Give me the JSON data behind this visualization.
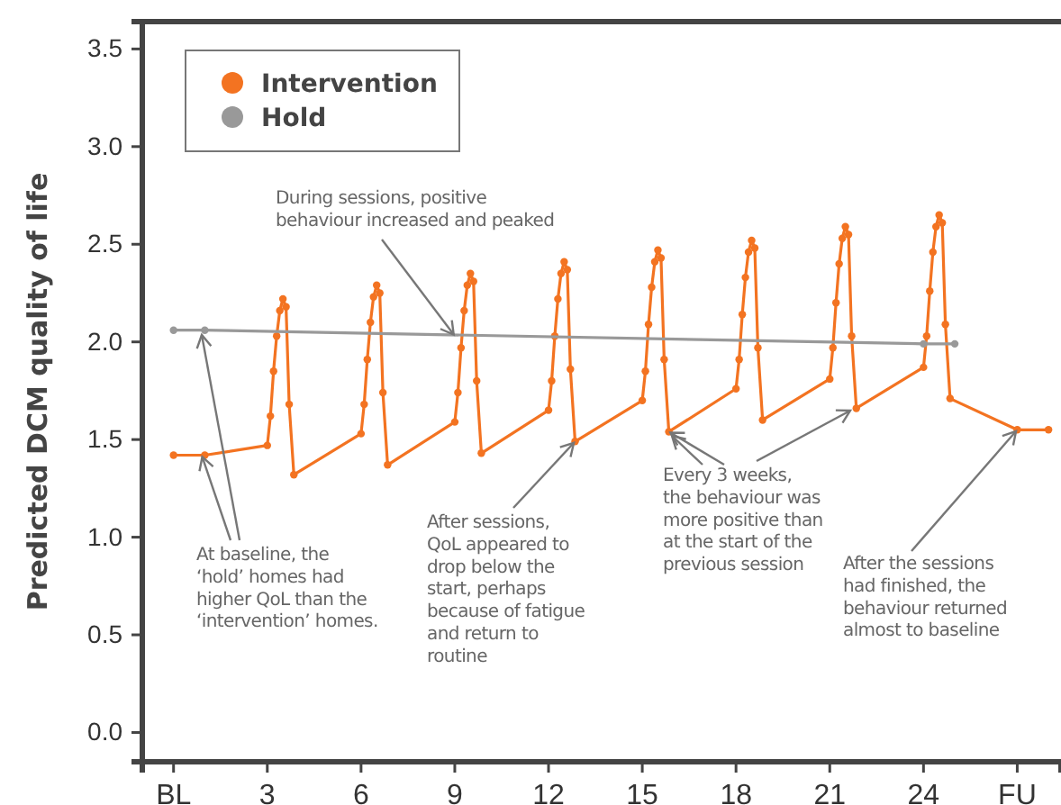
{
  "chart_data": {
    "type": "line",
    "ylabel": "Predicted DCM quality of life",
    "xlim": [
      -1,
      28.4
    ],
    "ylim": [
      -0.15,
      3.64
    ],
    "xticks": [
      {
        "value": 0,
        "label": "BL"
      },
      3,
      6,
      9,
      12,
      15,
      18,
      21,
      24,
      {
        "value": 27,
        "label": "FU"
      }
    ],
    "yticks": [
      {
        "value": 0,
        "label": "0.0"
      },
      {
        "value": 0.5,
        "label": "0.5"
      },
      {
        "value": 1,
        "label": "1.0"
      },
      {
        "value": 1.5,
        "label": "1.5"
      },
      {
        "value": 2,
        "label": "2.0"
      },
      {
        "value": 2.5,
        "label": "2.5"
      },
      {
        "value": 3,
        "label": "3.0"
      },
      {
        "value": 3.5,
        "label": "3.5"
      }
    ],
    "grid": false,
    "legend": "top left",
    "marker": "circle",
    "line_style": "solid",
    "series": [
      {
        "name": "Intervention",
        "color": "#f37321",
        "x": [
          0,
          1,
          3,
          3.1,
          3.2,
          3.3,
          3.4,
          3.5,
          3.6,
          3.7,
          3.85,
          6,
          6.1,
          6.2,
          6.3,
          6.4,
          6.5,
          6.6,
          6.7,
          6.85,
          9,
          9.1,
          9.2,
          9.3,
          9.4,
          9.5,
          9.6,
          9.7,
          9.85,
          12,
          12.1,
          12.2,
          12.3,
          12.4,
          12.5,
          12.6,
          12.7,
          12.85,
          15,
          15.1,
          15.2,
          15.3,
          15.4,
          15.5,
          15.6,
          15.7,
          15.85,
          18,
          18.1,
          18.2,
          18.3,
          18.4,
          18.5,
          18.6,
          18.7,
          18.85,
          21,
          21.1,
          21.2,
          21.3,
          21.4,
          21.5,
          21.6,
          21.7,
          21.85,
          24,
          24.1,
          24.2,
          24.3,
          24.4,
          24.5,
          24.6,
          24.7,
          24.85,
          27,
          28
        ],
        "values": [
          1.42,
          1.42,
          1.47,
          1.62,
          1.85,
          2.03,
          2.16,
          2.22,
          2.18,
          1.68,
          1.32,
          1.53,
          1.68,
          1.91,
          2.1,
          2.23,
          2.29,
          2.25,
          1.74,
          1.37,
          1.59,
          1.74,
          1.97,
          2.16,
          2.29,
          2.35,
          2.31,
          1.8,
          1.43,
          1.65,
          1.8,
          2.03,
          2.22,
          2.35,
          2.41,
          2.37,
          1.86,
          1.49,
          1.7,
          1.85,
          2.09,
          2.28,
          2.41,
          2.47,
          2.43,
          1.91,
          1.54,
          1.76,
          1.91,
          2.14,
          2.33,
          2.46,
          2.52,
          2.48,
          1.97,
          1.6,
          1.81,
          1.97,
          2.2,
          2.4,
          2.53,
          2.59,
          2.55,
          2.03,
          1.66,
          1.87,
          2.03,
          2.26,
          2.46,
          2.59,
          2.65,
          2.61,
          2.09,
          1.71,
          1.55,
          1.55
        ]
      },
      {
        "name": "Hold",
        "color": "#999999",
        "x": [
          0,
          1,
          24,
          25
        ],
        "values": [
          2.06,
          2.06,
          1.99,
          1.99
        ]
      }
    ],
    "annotations": [
      {
        "text": "During sessions, positive\nbehaviour increased and peaked",
        "x": 9,
        "y": 2.03
      },
      {
        "text": "At baseline, the\n‘hold’ homes had\nhigher QoL than the\n‘intervention’ homes.",
        "x": 0.9,
        "y": 1.42
      },
      {
        "text": "After sessions,\nQoL appeared to\ndrop below the\nstart, perhaps\nbecause of fatigue\nand return to\nroutine",
        "x": 12.85,
        "y": 1.49
      },
      {
        "text": "Every 3 weeks,\nthe behaviour was\nmore positive than\nat the start of the\nprevious session",
        "x": 15.85,
        "y": 1.54
      },
      {
        "text": "After the sessions\nhad finished, the\nbehaviour returned\nalmost to baseline",
        "x": 27,
        "y": 1.55
      }
    ]
  }
}
